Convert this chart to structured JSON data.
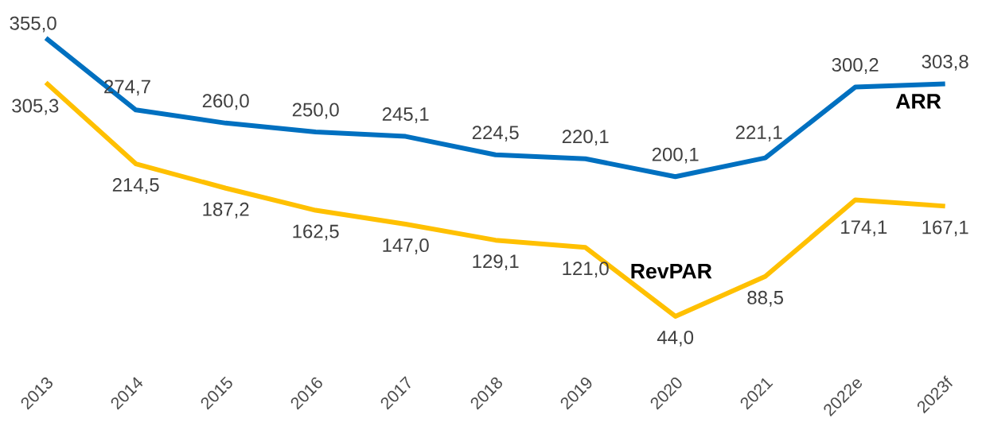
{
  "chart_data": {
    "type": "line",
    "categories": [
      "2013",
      "2014",
      "2015",
      "2016",
      "2017",
      "2018",
      "2019",
      "2020",
      "2021",
      "2022e",
      "2023f"
    ],
    "series": [
      {
        "name": "ARR",
        "color": "#0070c0",
        "values": [
          355.0,
          274.7,
          260.0,
          250.0,
          245.1,
          224.5,
          220.1,
          200.1,
          221.1,
          300.2,
          303.8
        ],
        "value_labels": [
          "355,0",
          "274,7",
          "260,0",
          "250,0",
          "245,1",
          "224,5",
          "220,1",
          "200,1",
          "221,1",
          "300,2",
          "303,8"
        ]
      },
      {
        "name": "RevPAR",
        "color": "#ffc000",
        "values": [
          305.3,
          214.5,
          187.2,
          162.5,
          147.0,
          129.1,
          121.0,
          44.0,
          88.5,
          174.1,
          167.1
        ],
        "value_labels": [
          "305,3",
          "214,5",
          "187,2",
          "162,5",
          "147,0",
          "129,1",
          "121,0",
          "44,0",
          "88,5",
          "174,1",
          "167,1"
        ]
      }
    ],
    "tick_labels": "x",
    "grid": false,
    "marker": "none",
    "line_style": "solid"
  }
}
